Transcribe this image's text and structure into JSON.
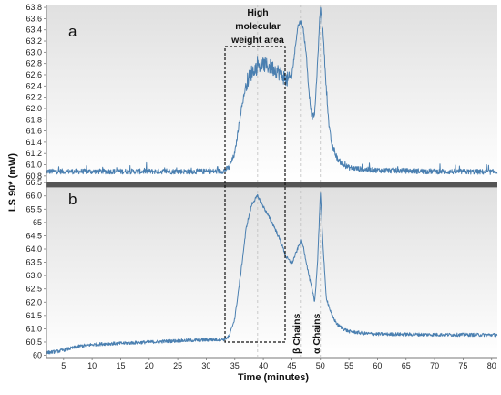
{
  "chart_data": [
    {
      "panel": "a",
      "type": "line",
      "xlabel": "Time (minutes)",
      "ylabel": "LS 90* (mW)",
      "xlim": [
        2,
        81
      ],
      "ylim": [
        60.7,
        63.85
      ],
      "y_ticks": [
        "60.8",
        "61.0",
        "61.2",
        "61.4",
        "61.6",
        "61.8",
        "62.0",
        "62.2",
        "62.4",
        "62.6",
        "62.8",
        "63.0",
        "63.2",
        "63.4",
        "63.6",
        "63.8"
      ],
      "series": [
        {
          "color": "#4a7fb0",
          "noise": 0.03,
          "x": [
            2,
            10,
            20,
            30,
            32,
            33,
            34,
            35,
            36,
            37,
            38,
            39,
            40,
            41,
            42,
            43,
            44,
            44.5,
            45,
            45.5,
            46,
            46.5,
            47,
            47.5,
            48,
            48.5,
            49,
            49.5,
            50,
            50.5,
            51,
            51.5,
            52,
            53,
            54,
            55,
            57,
            60,
            70,
            81
          ],
          "y": [
            60.88,
            60.88,
            60.88,
            60.88,
            60.88,
            60.89,
            60.95,
            61.2,
            61.9,
            62.45,
            62.65,
            62.75,
            62.78,
            62.75,
            62.7,
            62.62,
            62.52,
            62.5,
            62.6,
            63.0,
            63.45,
            63.55,
            63.4,
            63.0,
            62.3,
            61.85,
            61.9,
            62.8,
            63.82,
            63.3,
            62.4,
            61.7,
            61.35,
            61.1,
            61.0,
            60.95,
            60.92,
            60.9,
            60.88,
            60.87
          ]
        }
      ],
      "annotations": [
        "a",
        "High",
        "molecular",
        "weight area"
      ]
    },
    {
      "panel": "b",
      "type": "line",
      "xlabel": "Time (minutes)",
      "ylabel": "LS 90* (mW)",
      "xlim": [
        2,
        81
      ],
      "ylim": [
        59.95,
        66.3
      ],
      "x_ticks": [
        "5",
        "10",
        "15",
        "20",
        "25",
        "30",
        "35",
        "40",
        "45",
        "50",
        "55",
        "60",
        "65",
        "70",
        "75",
        "80"
      ],
      "y_ticks": [
        "60",
        "60.5",
        "61.0",
        "61.5",
        "62.0",
        "62.5",
        "63.0",
        "63.5",
        "64.0",
        "64.5",
        "65",
        "65.5",
        "66.0",
        "66.5"
      ],
      "series": [
        {
          "color": "#4a7fb0",
          "noise": 0.02,
          "x": [
            2,
            4,
            6,
            8,
            10,
            12,
            15,
            20,
            25,
            30,
            33,
            34,
            35,
            36,
            37,
            38,
            39,
            40,
            41,
            42,
            43,
            44,
            45,
            46,
            46.5,
            47,
            48,
            49,
            49.5,
            50,
            50.5,
            51,
            52,
            53,
            54,
            55,
            58,
            60,
            70,
            81
          ],
          "y": [
            60.1,
            60.15,
            60.25,
            60.35,
            60.4,
            60.43,
            60.45,
            60.5,
            60.55,
            60.58,
            60.6,
            60.7,
            61.4,
            63.0,
            64.8,
            65.7,
            66.0,
            65.6,
            65.2,
            64.8,
            64.3,
            63.7,
            63.45,
            64.0,
            64.3,
            64.1,
            63.0,
            62.0,
            63.5,
            66.1,
            64.0,
            62.2,
            61.5,
            61.15,
            61.0,
            60.9,
            60.82,
            60.8,
            60.78,
            60.77
          ]
        }
      ],
      "annotations": [
        "b",
        "β Chains",
        "α Chains"
      ]
    }
  ],
  "colors": {
    "line": "#4a7fb0",
    "panel_bg_top": "#e2e2e2",
    "panel_bg_bottom": "#ffffff",
    "guide": "#bfbfbf"
  }
}
